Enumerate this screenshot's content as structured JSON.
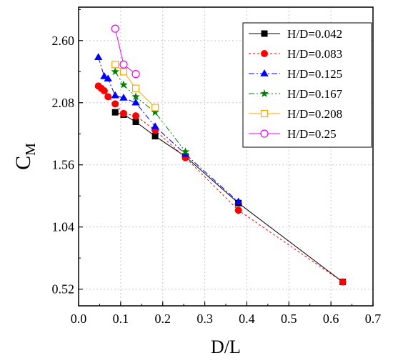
{
  "chart_data": {
    "type": "line",
    "title": "",
    "xlabel": "D/L",
    "ylabel": {
      "base": "C",
      "subscript": "M"
    },
    "xlim": [
      0.0,
      0.7
    ],
    "ylim": [
      0.38,
      2.88
    ],
    "x_ticks": [
      0.0,
      0.1,
      0.2,
      0.3,
      0.4,
      0.5,
      0.6,
      0.7
    ],
    "x_tick_labels": [
      "0.0",
      "0.1",
      "0.2",
      "0.3",
      "0.4",
      "0.5",
      "0.6",
      "0.7"
    ],
    "y_ticks": [
      0.52,
      1.04,
      1.56,
      2.08,
      2.6
    ],
    "y_tick_labels": [
      "0.52",
      "1.04",
      "1.56",
      "2.08",
      "2.60"
    ],
    "grid": true,
    "legend_position": "top-right",
    "series": [
      {
        "name": "H/D=0.042",
        "color": "#000000",
        "marker": "square-filled",
        "dash": "solid",
        "x": [
          0.087,
          0.107,
          0.136,
          0.182,
          0.254,
          0.38,
          0.628
        ],
        "y": [
          2.0,
          1.98,
          1.92,
          1.8,
          1.63,
          1.24,
          0.58
        ]
      },
      {
        "name": "H/D=0.083",
        "color": "#ff0000",
        "marker": "circle-filled",
        "dash": "dotted",
        "x": [
          0.047,
          0.054,
          0.061,
          0.07,
          0.087,
          0.107,
          0.136,
          0.182,
          0.254,
          0.38,
          0.628
        ],
        "y": [
          2.22,
          2.2,
          2.18,
          2.13,
          2.07,
          1.99,
          1.97,
          1.85,
          1.62,
          1.18,
          0.58
        ]
      },
      {
        "name": "H/D=0.125",
        "color": "#0000ff",
        "marker": "triangle-filled",
        "dash": "dashdot",
        "x": [
          0.047,
          0.061,
          0.07,
          0.087,
          0.107,
          0.136,
          0.182,
          0.254,
          0.38
        ],
        "y": [
          2.46,
          2.3,
          2.28,
          2.14,
          2.12,
          2.08,
          1.88,
          1.65,
          1.25
        ]
      },
      {
        "name": "H/D=0.167",
        "color": "#008000",
        "marker": "star-filled",
        "dash": "dashdotdot",
        "x": [
          0.087,
          0.107,
          0.136,
          0.182,
          0.254
        ],
        "y": [
          2.34,
          2.23,
          2.13,
          2.0,
          1.67
        ]
      },
      {
        "name": "H/D=0.208",
        "color": "#ffa500",
        "marker": "square-open",
        "dash": "solid",
        "x": [
          0.087,
          0.107,
          0.136,
          0.182
        ],
        "y": [
          2.4,
          2.34,
          2.2,
          2.04
        ]
      },
      {
        "name": "H/D=0.25",
        "color": "#ee00ee",
        "marker": "circle-open",
        "dash": "solid",
        "x": [
          0.087,
          0.107,
          0.136
        ],
        "y": [
          2.7,
          2.4,
          2.32
        ]
      }
    ]
  }
}
